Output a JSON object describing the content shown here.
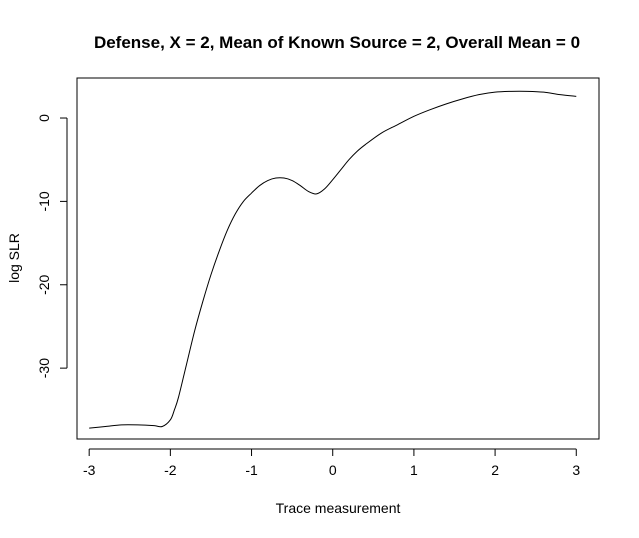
{
  "chart_data": {
    "type": "line",
    "title": "Defense, X = 2, Mean of Known Source = 2, Overall Mean = 0",
    "xlabel": "Trace measurement",
    "ylabel": "log SLR",
    "xlim": [
      -3.15,
      3.28
    ],
    "ylim": [
      -38.5,
      4.8
    ],
    "x_ticks": [
      -3,
      -2,
      -1,
      0,
      1,
      2,
      3
    ],
    "x_tick_labels": [
      "-3",
      "-2",
      "-1",
      "0",
      "1",
      "2",
      "3"
    ],
    "y_ticks": [
      0,
      -10,
      -20,
      -30
    ],
    "y_tick_labels": [
      "0",
      "-10",
      "-20",
      "-30"
    ],
    "grid": false,
    "legend": "none",
    "series": [
      {
        "color": "#000000",
        "x": [
          -3.0,
          -2.8,
          -2.6,
          -2.4,
          -2.2,
          -2.1,
          -2.0,
          -1.95,
          -1.9,
          -1.8,
          -1.7,
          -1.6,
          -1.5,
          -1.4,
          -1.3,
          -1.2,
          -1.1,
          -1.0,
          -0.9,
          -0.8,
          -0.7,
          -0.6,
          -0.5,
          -0.4,
          -0.3,
          -0.2,
          -0.1,
          0.0,
          0.1,
          0.2,
          0.3,
          0.4,
          0.6,
          0.8,
          1.0,
          1.2,
          1.4,
          1.6,
          1.8,
          2.0,
          2.2,
          2.4,
          2.6,
          2.8,
          3.0
        ],
        "y": [
          -37.2,
          -37.0,
          -36.8,
          -36.8,
          -36.9,
          -37.0,
          -36.2,
          -35.0,
          -33.5,
          -29.5,
          -25.5,
          -22.0,
          -18.8,
          -16.0,
          -13.5,
          -11.5,
          -10.0,
          -9.0,
          -8.1,
          -7.5,
          -7.2,
          -7.2,
          -7.5,
          -8.1,
          -8.8,
          -9.1,
          -8.5,
          -7.4,
          -6.2,
          -5.0,
          -4.0,
          -3.2,
          -1.8,
          -0.8,
          0.2,
          1.0,
          1.7,
          2.3,
          2.8,
          3.1,
          3.2,
          3.2,
          3.1,
          2.8,
          2.6
        ]
      }
    ]
  }
}
